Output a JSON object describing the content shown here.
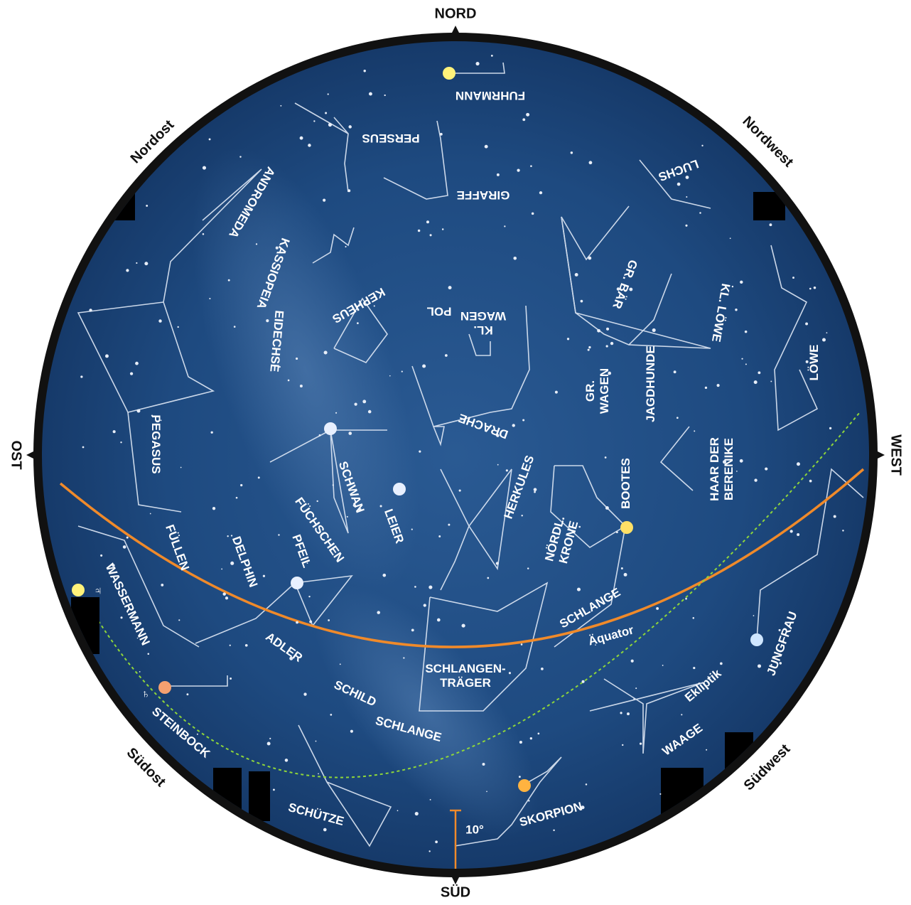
{
  "directions": [
    "NORD",
    "SÜD",
    "OST",
    "WEST",
    "Nordost",
    "Nordwest",
    "Südost",
    "Südwest"
  ],
  "constellations": [
    [
      "FUHRMANN"
    ],
    [
      "PERSEUS"
    ],
    [
      "GIRAFFE"
    ],
    [
      "LUCHS"
    ],
    [
      "ANDROMEDA"
    ],
    [
      "KASSIOPEIA"
    ],
    [
      "EIDECHSE"
    ],
    [
      "KEPHEUS"
    ],
    [
      "KL.",
      "WAGEN"
    ],
    [
      "GR. BÄR"
    ],
    [
      "KL. LÖWE"
    ],
    [
      "LÖWE"
    ],
    [
      "GR.",
      "WAGEN"
    ],
    [
      "JAGDHUNDE"
    ],
    [
      "DRACHE"
    ],
    [
      "PEGASUS"
    ],
    [
      "SCHWAN"
    ],
    [
      "HAAR DER",
      "BERENIKE"
    ],
    [
      "BOOTES"
    ],
    [
      "HERKULES"
    ],
    [
      "LEIER"
    ],
    [
      "FÜCHSCHEN"
    ],
    [
      "PFEIL"
    ],
    [
      "DELPHIN"
    ],
    [
      "FÜLLEN"
    ],
    [
      "WASSERMANN"
    ],
    [
      "NÖRDL.",
      "KRONE"
    ],
    [
      "SCHLANGE"
    ],
    [
      "ADLER"
    ],
    [
      "SCHLANGEN-",
      "TRÄGER"
    ],
    [
      "JUNGFRAU"
    ],
    [
      "SCHILD"
    ],
    [
      "SCHLANGE"
    ],
    [
      "WAAGE"
    ],
    [
      "STEINBOCK"
    ],
    [
      "SCHÜTZE"
    ],
    [
      "SKORPION"
    ]
  ],
  "pole": "POL",
  "equator": "Äquator",
  "ecliptic": "Ekliptik",
  "scale": "10°",
  "planets": [
    "♃",
    "♄"
  ]
}
